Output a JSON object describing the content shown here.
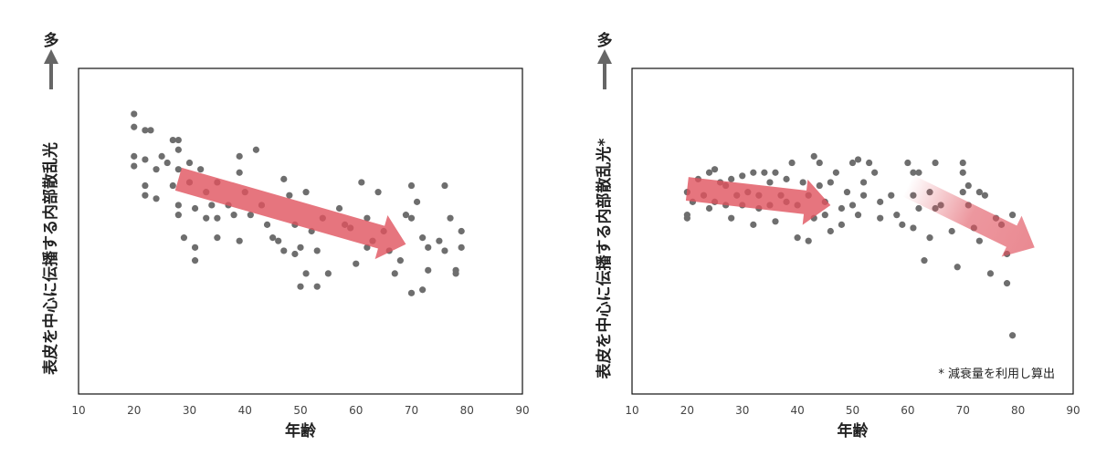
{
  "chart_data": [
    {
      "type": "scatter",
      "xlabel": "年齢",
      "ylabel": "表皮を中心に伝播する内部散乱光",
      "y_marker": "多",
      "xlim": [
        10,
        90
      ],
      "xticks": [
        10,
        20,
        30,
        40,
        50,
        60,
        70,
        80,
        90
      ],
      "ylim": [
        0,
        100
      ],
      "color": "#6e6e6e",
      "x": [
        20,
        20,
        20,
        20,
        22,
        23,
        22,
        22,
        22,
        24,
        24,
        25,
        26,
        27,
        27,
        28,
        28,
        28,
        28,
        28,
        29,
        30,
        30,
        31,
        31,
        31,
        32,
        33,
        33,
        34,
        35,
        35,
        35,
        37,
        38,
        39,
        39,
        39,
        40,
        41,
        42,
        43,
        44,
        45,
        46,
        47,
        47,
        48,
        49,
        49,
        50,
        50,
        51,
        51,
        52,
        53,
        53,
        54,
        55,
        57,
        58,
        59,
        60,
        61,
        62,
        62,
        63,
        64,
        65,
        66,
        67,
        68,
        69,
        70,
        70,
        70,
        71,
        72,
        72,
        73,
        73,
        75,
        76,
        76,
        77,
        78,
        78,
        79,
        79
      ],
      "y": [
        86,
        82,
        73,
        70,
        81,
        81,
        72,
        64,
        61,
        69,
        60,
        73,
        71,
        78,
        64,
        78,
        75,
        69,
        58,
        55,
        48,
        71,
        65,
        57,
        45,
        41,
        69,
        62,
        54,
        58,
        54,
        48,
        65,
        58,
        55,
        73,
        68,
        47,
        62,
        55,
        75,
        58,
        52,
        48,
        47,
        66,
        44,
        61,
        52,
        43,
        33,
        45,
        37,
        62,
        50,
        44,
        33,
        54,
        37,
        57,
        52,
        51,
        40,
        65,
        54,
        45,
        47,
        62,
        50,
        44,
        37,
        41,
        55,
        64,
        54,
        31,
        59,
        48,
        32,
        45,
        38,
        47,
        64,
        44,
        54,
        38,
        37,
        50,
        45
      ]
    },
    {
      "type": "scatter",
      "xlabel": "年齢",
      "ylabel": "表皮を中心に伝播する内部散乱光*",
      "y_marker": "多",
      "annotation": "* 減衰量を利用し算出",
      "xlim": [
        10,
        90
      ],
      "xticks": [
        10,
        20,
        30,
        40,
        50,
        60,
        70,
        80,
        90
      ],
      "ylim": [
        0,
        100
      ],
      "color": "#6e6e6e",
      "x": [
        20,
        20,
        20,
        21,
        22,
        23,
        24,
        24,
        25,
        25,
        26,
        27,
        27,
        28,
        28,
        29,
        30,
        30,
        31,
        32,
        32,
        33,
        33,
        34,
        35,
        35,
        36,
        36,
        37,
        38,
        38,
        39,
        40,
        40,
        41,
        42,
        42,
        43,
        43,
        44,
        44,
        45,
        45,
        46,
        46,
        47,
        48,
        48,
        49,
        50,
        50,
        51,
        51,
        52,
        52,
        53,
        54,
        55,
        55,
        57,
        58,
        59,
        60,
        61,
        61,
        61,
        62,
        62,
        63,
        64,
        64,
        65,
        65,
        66,
        68,
        69,
        70,
        70,
        70,
        71,
        71,
        72,
        73,
        73,
        74,
        75,
        76,
        77,
        78,
        78,
        79,
        79
      ],
      "y": [
        62,
        54,
        55,
        59,
        66,
        61,
        68,
        57,
        69,
        59,
        65,
        64,
        58,
        66,
        54,
        61,
        67,
        58,
        62,
        68,
        52,
        57,
        61,
        68,
        58,
        65,
        68,
        53,
        61,
        59,
        66,
        71,
        58,
        48,
        65,
        61,
        47,
        73,
        54,
        64,
        71,
        59,
        55,
        65,
        50,
        68,
        57,
        52,
        62,
        71,
        58,
        55,
        72,
        65,
        61,
        71,
        68,
        59,
        54,
        61,
        55,
        52,
        71,
        68,
        61,
        51,
        57,
        68,
        41,
        62,
        48,
        71,
        57,
        58,
        50,
        39,
        71,
        68,
        62,
        64,
        58,
        51,
        62,
        47,
        61,
        37,
        54,
        52,
        43,
        34,
        55,
        18
      ]
    }
  ]
}
